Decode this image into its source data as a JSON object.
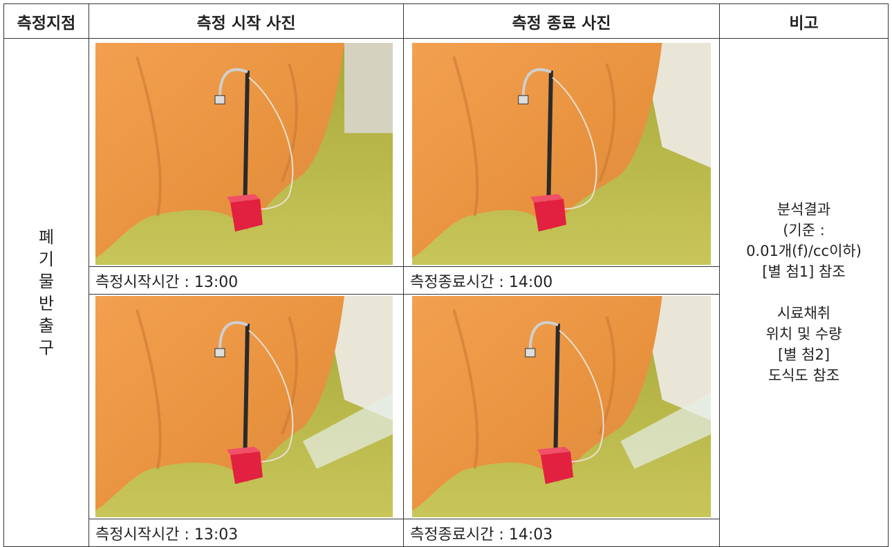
{
  "table": {
    "header": [
      "측정지점",
      "측정 시작 사진",
      "측정 종료 사진",
      "비고"
    ],
    "location": "폐기물반출구",
    "rows": [
      {
        "start_caption": "측정시작시간 : 13:00",
        "end_caption": "측정종료시간 : 14:00"
      },
      {
        "start_caption": "측정시작시간 : 13:03",
        "end_caption": "측정종료시간 : 14:03"
      }
    ],
    "remarks": [
      [
        "분석결과",
        "(기준 :",
        "0.01개(f)/cc이하)",
        "[별 첨1] 참조"
      ],
      [
        "시료채취",
        "위치 및 수량",
        "[별 첨2]",
        "도식도 참조"
      ]
    ]
  }
}
